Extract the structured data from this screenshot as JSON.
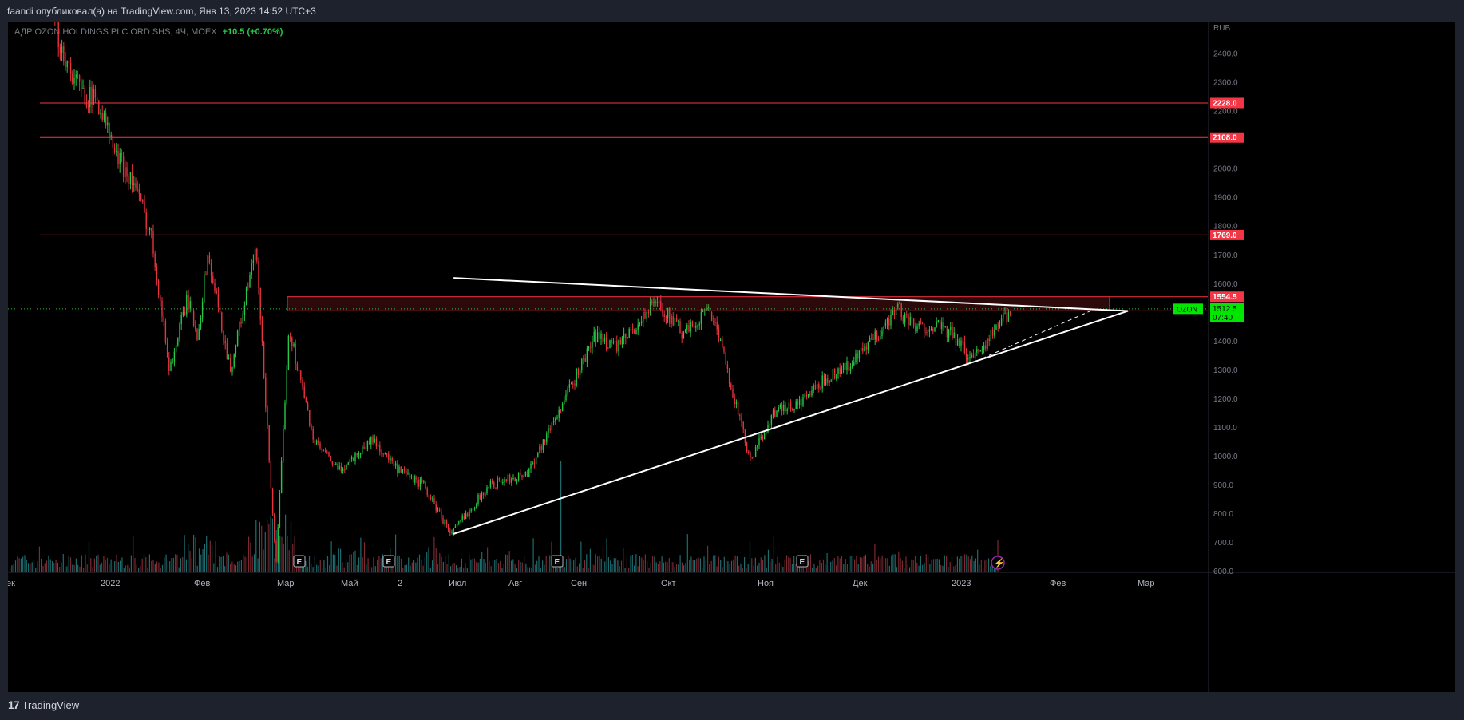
{
  "header": {
    "publish_text": "faandi опубликовал(а) на TradingView.com, Янв 13, 2023 14:52 UTC+3"
  },
  "symbol": {
    "name": "АДР OZON HOLDINGS PLC ORD SHS, 4Ч, MOEX",
    "change": "+10.5 (+0.70%)"
  },
  "footer": {
    "brand_logo": "17",
    "brand_name": "TradingView"
  },
  "colors": {
    "background": "#000000",
    "up": "#26c846",
    "down": "#e8343c",
    "level_line": "#f23645",
    "trendline": "#ffffff",
    "label_bg": "#f23645",
    "price_label_bg": "#00e600"
  },
  "chart_data": {
    "type": "candlestick",
    "currency": "RUB",
    "y_ticks": [
      2400,
      2300,
      2200,
      2100,
      2000,
      1900,
      1800,
      1700,
      1600,
      1500,
      1400,
      1300,
      1200,
      1100,
      1000,
      900,
      800,
      700,
      600
    ],
    "x_ticks": [
      "ек",
      "2022",
      "Фев",
      "Мар",
      "Май",
      "2",
      "Июл",
      "Авг",
      "Сен",
      "Окт",
      "Ноя",
      "Дек",
      "2023",
      "Фев",
      "Мар"
    ],
    "horizontal_levels": [
      2228.0,
      2108.0,
      1769.0
    ],
    "zone": {
      "top": 1554.5,
      "bottom": 1505.5
    },
    "level_labels": [
      "2228.0",
      "2108.0",
      "1769.0",
      "1554.5",
      "1505.5"
    ],
    "current_price": {
      "symbol": "OZON",
      "price": "1512.5",
      "countdown": "07:40",
      "value": 1512.5
    },
    "earnings_markers": [
      "E",
      "E",
      "E",
      "E"
    ],
    "dividend_marker": "⚡",
    "price_path": [
      [
        "2021-12-28",
        2560
      ],
      [
        "2022-01-04",
        2380
      ],
      [
        "2022-01-10",
        2270
      ],
      [
        "2022-01-17",
        2230
      ],
      [
        "2022-01-24",
        2040
      ],
      [
        "2022-01-31",
        1950
      ],
      [
        "2022-02-07",
        1760
      ],
      [
        "2022-02-14",
        1300
      ],
      [
        "2022-02-21",
        1550
      ],
      [
        "2022-02-25",
        1420
      ],
      [
        "2022-03-01",
        1700
      ],
      [
        "2022-03-10",
        1300
      ],
      [
        "2022-03-20",
        1720
      ],
      [
        "2022-03-28",
        620
      ],
      [
        "2022-04-02",
        1450
      ],
      [
        "2022-04-12",
        1050
      ],
      [
        "2022-04-22",
        950
      ],
      [
        "2022-05-05",
        1060
      ],
      [
        "2022-05-15",
        950
      ],
      [
        "2022-05-25",
        900
      ],
      [
        "2022-06-05",
        730
      ],
      [
        "2022-06-20",
        900
      ],
      [
        "2022-07-05",
        940
      ],
      [
        "2022-07-20",
        1200
      ],
      [
        "2022-08-01",
        1420
      ],
      [
        "2022-08-10",
        1380
      ],
      [
        "2022-08-25",
        1540
      ],
      [
        "2022-09-05",
        1420
      ],
      [
        "2022-09-15",
        1520
      ],
      [
        "2022-09-22",
        1300
      ],
      [
        "2022-10-01",
        980
      ],
      [
        "2022-10-10",
        1150
      ],
      [
        "2022-10-20",
        1180
      ],
      [
        "2022-11-01",
        1280
      ],
      [
        "2022-11-10",
        1320
      ],
      [
        "2022-11-20",
        1420
      ],
      [
        "2022-11-28",
        1520
      ],
      [
        "2022-12-05",
        1440
      ],
      [
        "2022-12-12",
        1460
      ],
      [
        "2022-12-20",
        1420
      ],
      [
        "2022-12-27",
        1340
      ],
      [
        "2023-01-04",
        1420
      ],
      [
        "2023-01-12",
        1512
      ]
    ],
    "trendlines": [
      {
        "name": "upper",
        "from": [
          "2022-06-06",
          1620
        ],
        "to": [
          "2023-02-27",
          1505
        ]
      },
      {
        "name": "lower",
        "from": [
          "2022-06-06",
          730
        ],
        "to": [
          "2023-02-27",
          1505
        ]
      },
      {
        "name": "dashed",
        "from": [
          "2022-12-29",
          1330
        ],
        "to": [
          "2023-02-14",
          1512
        ],
        "dashed": true
      }
    ]
  }
}
